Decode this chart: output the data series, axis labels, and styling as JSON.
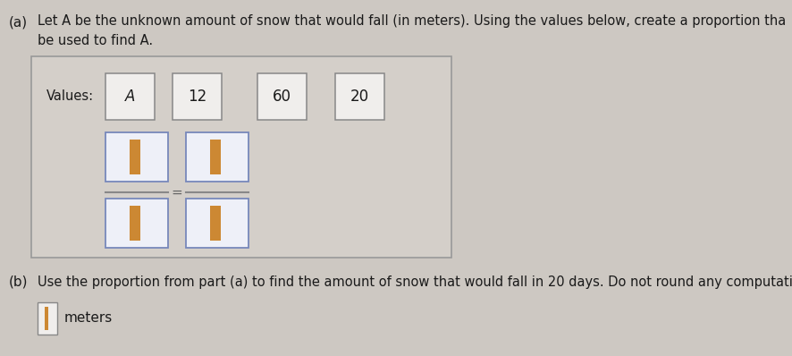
{
  "bg_color": "#cdc8c2",
  "inner_bg": "#d4cfc9",
  "text_color": "#1a1a1a",
  "title_a": "(a)",
  "title_b": "(b)",
  "line1": "Let A be the unknown amount of snow that would fall (in meters). Using the values below, create a proportion tha",
  "line2": "be used to find A.",
  "values_label": "Values:",
  "values": [
    "A",
    "12",
    "60",
    "20"
  ],
  "part_b_line": "Use the proportion from part (a) to find the amount of snow that would fall in 20 days. Do not round any computation",
  "part_b_sub": "meters",
  "outer_box_edge": "#999999",
  "val_box_edge": "#888888",
  "val_box_fill": "#f0eeec",
  "prop_box_edge": "#7788bb",
  "prop_box_fill": "#eef0f8",
  "orange_bar": "#cc8833",
  "frac_line_color": "#888888",
  "equals_color": "#666666",
  "meter_box_edge": "#888888",
  "meter_box_fill": "#f0eeec"
}
